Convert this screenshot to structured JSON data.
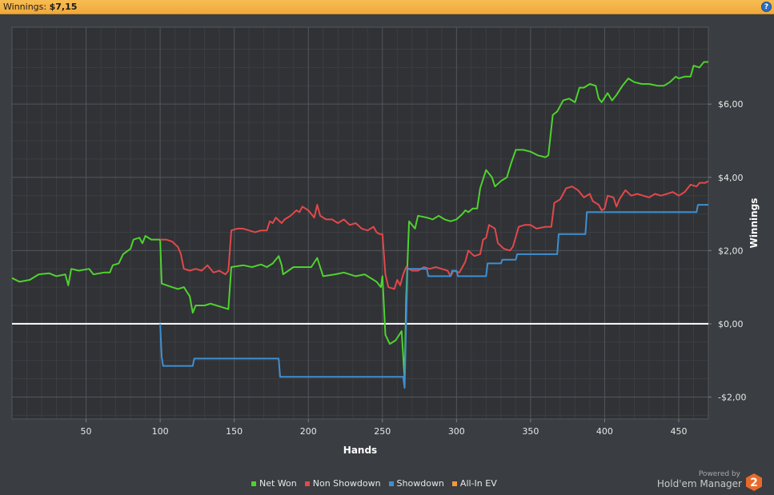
{
  "header": {
    "label": "Winnings:",
    "value": "$7,15",
    "help_glyph": "?"
  },
  "chart_data": {
    "type": "line",
    "xlabel": "Hands",
    "ylabel": "Winnings",
    "xlim": [
      0,
      470
    ],
    "ylim": [
      -2.6,
      8.1
    ],
    "x_ticks": [
      50,
      100,
      150,
      200,
      250,
      300,
      350,
      400,
      450
    ],
    "y_ticks": [
      -2,
      0,
      2,
      4,
      6
    ],
    "y_tick_labels": [
      "-$2,00",
      "$0,00",
      "$2,00",
      "$4,00",
      "$6,00"
    ],
    "grid": true,
    "legend_position": "bottom",
    "series": [
      {
        "name": "Net Won",
        "color": "#4fd22e",
        "points": [
          [
            0,
            1.25
          ],
          [
            5,
            1.15
          ],
          [
            12,
            1.2
          ],
          [
            18,
            1.35
          ],
          [
            25,
            1.38
          ],
          [
            30,
            1.3
          ],
          [
            36,
            1.35
          ],
          [
            38,
            1.05
          ],
          [
            40,
            1.5
          ],
          [
            45,
            1.45
          ],
          [
            52,
            1.5
          ],
          [
            55,
            1.35
          ],
          [
            62,
            1.4
          ],
          [
            66,
            1.4
          ],
          [
            68,
            1.6
          ],
          [
            72,
            1.65
          ],
          [
            75,
            1.9
          ],
          [
            80,
            2.05
          ],
          [
            82,
            2.3
          ],
          [
            86,
            2.35
          ],
          [
            88,
            2.2
          ],
          [
            90,
            2.4
          ],
          [
            94,
            2.3
          ],
          [
            100,
            2.3
          ],
          [
            101,
            1.1
          ],
          [
            108,
            1.0
          ],
          [
            112,
            0.95
          ],
          [
            116,
            1.0
          ],
          [
            120,
            0.75
          ],
          [
            122,
            0.3
          ],
          [
            124,
            0.5
          ],
          [
            130,
            0.5
          ],
          [
            134,
            0.55
          ],
          [
            138,
            0.5
          ],
          [
            142,
            0.45
          ],
          [
            146,
            0.4
          ],
          [
            148,
            1.55
          ],
          [
            156,
            1.6
          ],
          [
            162,
            1.55
          ],
          [
            168,
            1.62
          ],
          [
            172,
            1.55
          ],
          [
            176,
            1.65
          ],
          [
            180,
            1.85
          ],
          [
            182,
            1.6
          ],
          [
            183,
            1.35
          ],
          [
            190,
            1.55
          ],
          [
            196,
            1.55
          ],
          [
            202,
            1.55
          ],
          [
            206,
            1.8
          ],
          [
            208,
            1.55
          ],
          [
            210,
            1.3
          ],
          [
            218,
            1.35
          ],
          [
            224,
            1.4
          ],
          [
            232,
            1.3
          ],
          [
            238,
            1.35
          ],
          [
            242,
            1.25
          ],
          [
            246,
            1.15
          ],
          [
            249,
            1.0
          ],
          [
            250,
            1.3
          ],
          [
            252,
            -0.3
          ],
          [
            255,
            -0.55
          ],
          [
            259,
            -0.45
          ],
          [
            263,
            -0.2
          ],
          [
            265,
            -1.5
          ],
          [
            266,
            0.7
          ],
          [
            268,
            2.8
          ],
          [
            272,
            2.6
          ],
          [
            274,
            2.95
          ],
          [
            280,
            2.9
          ],
          [
            284,
            2.85
          ],
          [
            288,
            2.95
          ],
          [
            292,
            2.85
          ],
          [
            296,
            2.8
          ],
          [
            300,
            2.85
          ],
          [
            304,
            3.0
          ],
          [
            306,
            3.1
          ],
          [
            308,
            3.05
          ],
          [
            311,
            3.15
          ],
          [
            314,
            3.15
          ],
          [
            316,
            3.7
          ],
          [
            320,
            4.2
          ],
          [
            324,
            4.0
          ],
          [
            326,
            3.75
          ],
          [
            330,
            3.9
          ],
          [
            334,
            4.0
          ],
          [
            337,
            4.4
          ],
          [
            340,
            4.75
          ],
          [
            345,
            4.75
          ],
          [
            350,
            4.7
          ],
          [
            355,
            4.6
          ],
          [
            360,
            4.55
          ],
          [
            362,
            4.6
          ],
          [
            365,
            5.7
          ],
          [
            368,
            5.8
          ],
          [
            372,
            6.1
          ],
          [
            376,
            6.15
          ],
          [
            380,
            6.05
          ],
          [
            383,
            6.45
          ],
          [
            386,
            6.45
          ],
          [
            390,
            6.55
          ],
          [
            394,
            6.5
          ],
          [
            396,
            6.15
          ],
          [
            398,
            6.05
          ],
          [
            402,
            6.3
          ],
          [
            405,
            6.1
          ],
          [
            408,
            6.25
          ],
          [
            412,
            6.5
          ],
          [
            416,
            6.7
          ],
          [
            420,
            6.6
          ],
          [
            425,
            6.55
          ],
          [
            430,
            6.55
          ],
          [
            436,
            6.5
          ],
          [
            440,
            6.5
          ],
          [
            444,
            6.6
          ],
          [
            448,
            6.75
          ],
          [
            450,
            6.7
          ],
          [
            454,
            6.75
          ],
          [
            458,
            6.75
          ],
          [
            460,
            7.05
          ],
          [
            464,
            7.0
          ],
          [
            467,
            7.15
          ],
          [
            470,
            7.15
          ]
        ]
      },
      {
        "name": "Non Showdown",
        "color": "#e2484a",
        "points": [
          [
            100,
            2.3
          ],
          [
            104,
            2.3
          ],
          [
            108,
            2.25
          ],
          [
            112,
            2.1
          ],
          [
            114,
            1.9
          ],
          [
            116,
            1.5
          ],
          [
            120,
            1.45
          ],
          [
            124,
            1.5
          ],
          [
            128,
            1.45
          ],
          [
            132,
            1.6
          ],
          [
            136,
            1.4
          ],
          [
            140,
            1.45
          ],
          [
            144,
            1.35
          ],
          [
            146,
            1.45
          ],
          [
            148,
            2.55
          ],
          [
            152,
            2.6
          ],
          [
            156,
            2.6
          ],
          [
            160,
            2.55
          ],
          [
            164,
            2.5
          ],
          [
            168,
            2.55
          ],
          [
            172,
            2.55
          ],
          [
            174,
            2.8
          ],
          [
            176,
            2.75
          ],
          [
            178,
            2.9
          ],
          [
            182,
            2.75
          ],
          [
            184,
            2.85
          ],
          [
            188,
            2.95
          ],
          [
            192,
            3.1
          ],
          [
            194,
            3.05
          ],
          [
            196,
            3.2
          ],
          [
            198,
            3.15
          ],
          [
            200,
            3.1
          ],
          [
            204,
            2.9
          ],
          [
            206,
            3.25
          ],
          [
            208,
            2.95
          ],
          [
            212,
            2.85
          ],
          [
            216,
            2.85
          ],
          [
            220,
            2.75
          ],
          [
            224,
            2.85
          ],
          [
            228,
            2.7
          ],
          [
            232,
            2.75
          ],
          [
            236,
            2.6
          ],
          [
            240,
            2.55
          ],
          [
            244,
            2.65
          ],
          [
            246,
            2.5
          ],
          [
            248,
            2.45
          ],
          [
            250,
            2.45
          ],
          [
            252,
            1.35
          ],
          [
            254,
            1.0
          ],
          [
            258,
            0.95
          ],
          [
            260,
            1.2
          ],
          [
            262,
            1.05
          ],
          [
            264,
            1.35
          ],
          [
            266,
            1.55
          ],
          [
            270,
            1.45
          ],
          [
            274,
            1.45
          ],
          [
            278,
            1.55
          ],
          [
            282,
            1.5
          ],
          [
            286,
            1.55
          ],
          [
            290,
            1.5
          ],
          [
            294,
            1.45
          ],
          [
            296,
            1.3
          ],
          [
            298,
            1.45
          ],
          [
            302,
            1.4
          ],
          [
            304,
            1.55
          ],
          [
            306,
            1.7
          ],
          [
            308,
            2.0
          ],
          [
            312,
            1.85
          ],
          [
            316,
            1.9
          ],
          [
            318,
            2.3
          ],
          [
            320,
            2.35
          ],
          [
            322,
            2.7
          ],
          [
            326,
            2.6
          ],
          [
            328,
            2.2
          ],
          [
            332,
            2.05
          ],
          [
            336,
            2.0
          ],
          [
            338,
            2.1
          ],
          [
            342,
            2.65
          ],
          [
            346,
            2.7
          ],
          [
            350,
            2.7
          ],
          [
            354,
            2.6
          ],
          [
            360,
            2.65
          ],
          [
            364,
            2.65
          ],
          [
            366,
            3.3
          ],
          [
            370,
            3.4
          ],
          [
            374,
            3.7
          ],
          [
            378,
            3.75
          ],
          [
            382,
            3.65
          ],
          [
            386,
            3.45
          ],
          [
            390,
            3.55
          ],
          [
            392,
            3.35
          ],
          [
            396,
            3.25
          ],
          [
            398,
            3.1
          ],
          [
            400,
            3.15
          ],
          [
            402,
            3.5
          ],
          [
            406,
            3.45
          ],
          [
            408,
            3.2
          ],
          [
            410,
            3.4
          ],
          [
            414,
            3.65
          ],
          [
            418,
            3.5
          ],
          [
            422,
            3.55
          ],
          [
            426,
            3.5
          ],
          [
            430,
            3.45
          ],
          [
            434,
            3.55
          ],
          [
            438,
            3.5
          ],
          [
            442,
            3.55
          ],
          [
            446,
            3.6
          ],
          [
            450,
            3.5
          ],
          [
            454,
            3.6
          ],
          [
            458,
            3.8
          ],
          [
            462,
            3.75
          ],
          [
            464,
            3.85
          ],
          [
            468,
            3.85
          ],
          [
            470,
            3.9
          ]
        ]
      },
      {
        "name": "Showdown",
        "color": "#3f8fd0",
        "points": [
          [
            100,
            0.0
          ],
          [
            101,
            -0.9
          ],
          [
            102,
            -1.15
          ],
          [
            122,
            -1.15
          ],
          [
            123,
            -0.95
          ],
          [
            180,
            -0.95
          ],
          [
            181,
            -1.45
          ],
          [
            264,
            -1.45
          ],
          [
            265,
            -1.75
          ],
          [
            266,
            0.0
          ],
          [
            267,
            1.5
          ],
          [
            280,
            1.5
          ],
          [
            281,
            1.3
          ],
          [
            296,
            1.3
          ],
          [
            297,
            1.45
          ],
          [
            300,
            1.45
          ],
          [
            301,
            1.3
          ],
          [
            320,
            1.3
          ],
          [
            321,
            1.65
          ],
          [
            330,
            1.65
          ],
          [
            331,
            1.75
          ],
          [
            340,
            1.75
          ],
          [
            341,
            1.9
          ],
          [
            368,
            1.9
          ],
          [
            369,
            2.45
          ],
          [
            387,
            2.45
          ],
          [
            388,
            3.05
          ],
          [
            462,
            3.05
          ],
          [
            463,
            3.25
          ],
          [
            470,
            3.25
          ]
        ]
      },
      {
        "name": "All-In EV",
        "color": "#f39a3c",
        "points": []
      }
    ]
  },
  "legend": [
    {
      "name": "Net Won",
      "color": "#4fd22e"
    },
    {
      "name": "Non Showdown",
      "color": "#e2484a"
    },
    {
      "name": "Showdown",
      "color": "#3f8fd0"
    },
    {
      "name": "All-In EV",
      "color": "#f39a3c"
    }
  ],
  "branding": {
    "powered_by": "Powered by",
    "name": "Hold'em Manager",
    "logo_glyph": "2",
    "logo_color": "#e76a2b"
  }
}
